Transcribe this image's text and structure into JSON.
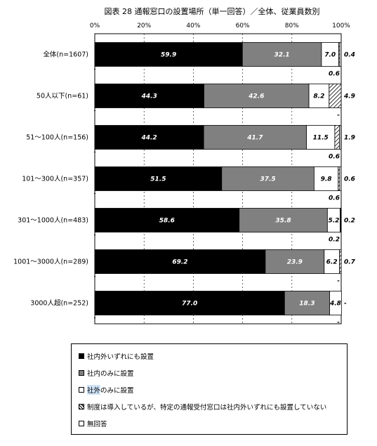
{
  "chart_data": {
    "type": "bar",
    "orientation": "horizontal",
    "stacked": true,
    "title": "図表 28 通報窓口の設置場所（単一回答）／全体、従業員数別",
    "xlim": [
      0,
      100
    ],
    "ticks": [
      "0%",
      "20%",
      "40%",
      "60%",
      "80%",
      "100%"
    ],
    "categories": [
      "全体(n=1607)",
      "50人以下(n=61)",
      "51～100人(n=156)",
      "101～300人(n=357)",
      "301～1000人(n=483)",
      "1001～3000人(n=289)",
      "3000人超(n=252)"
    ],
    "series": [
      {
        "name": "社内外いずれにも設置",
        "color": "#000000",
        "values": [
          59.9,
          44.3,
          44.2,
          51.5,
          58.6,
          69.2,
          77.0
        ],
        "labels": [
          "59.9",
          "44.3",
          "44.2",
          "51.5",
          "58.6",
          "69.2",
          "77.0"
        ]
      },
      {
        "name": "社内のみに設置",
        "color": "#808080",
        "values": [
          32.1,
          42.6,
          41.7,
          37.5,
          35.8,
          23.9,
          18.3
        ],
        "labels": [
          "32.1",
          "42.6",
          "41.7",
          "37.5",
          "35.8",
          "23.9",
          "18.3"
        ]
      },
      {
        "name": "社外のみに設置",
        "color": "#ffffff",
        "values": [
          7.0,
          8.2,
          11.5,
          9.8,
          5.2,
          6.2,
          4.8
        ],
        "labels": [
          "7.0",
          "8.2",
          "11.5",
          "9.8",
          "5.2",
          "6.2",
          "4.8"
        ]
      },
      {
        "name": "制度は導入しているが、特定の通報受付窓口は社内外いずれにも設置していない",
        "color": "hatch",
        "values": [
          0.4,
          4.9,
          1.9,
          0.6,
          0.2,
          0.7,
          0
        ],
        "labels": [
          "0.4",
          "4.9",
          "1.9",
          "0.6",
          "0.2",
          "0.7",
          "-"
        ]
      },
      {
        "name": "無回答",
        "color": "#ffffff",
        "values": [
          0.6,
          0,
          0.6,
          0.6,
          0.2,
          0,
          0
        ],
        "labels": [
          "0.6",
          "-",
          "0.6",
          "0.6",
          "0.2",
          "-",
          "-"
        ]
      }
    ]
  },
  "legend": {
    "items": [
      {
        "label_a": "社内外いずれにも設置",
        "hl": "",
        "label_b": ""
      },
      {
        "label_a": "社内のみに設置",
        "hl": "",
        "label_b": ""
      },
      {
        "label_a": "",
        "hl": "社外",
        "label_b": "のみに設置"
      },
      {
        "label_a": "制度は導入しているが、特定の通報受付窓口は社内外いずれにも設置していない",
        "hl": "",
        "label_b": ""
      },
      {
        "label_a": "無回答",
        "hl": "",
        "label_b": ""
      }
    ]
  }
}
